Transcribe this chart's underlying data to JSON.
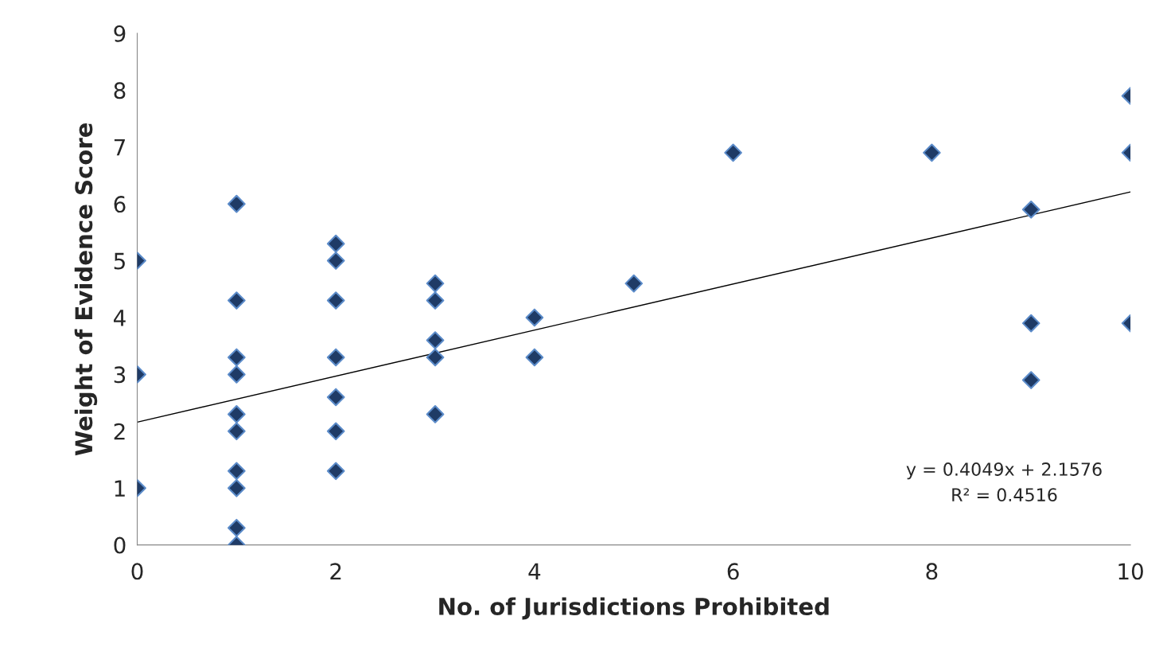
{
  "chart_data": {
    "type": "scatter",
    "xlabel": "No. of Jurisdictions Prohibited",
    "ylabel": "Weight of Evidence Score",
    "xlim": [
      0,
      10
    ],
    "xticks": [
      0,
      2,
      4,
      6,
      8,
      10
    ],
    "ylim": [
      0,
      9
    ],
    "yticks": [
      0,
      1,
      2,
      3,
      4,
      5,
      6,
      7,
      8,
      9
    ],
    "grid": false,
    "legend": false,
    "marker": "diamond",
    "series": [
      {
        "color": "#1f3b66",
        "x": [
          0,
          0,
          0,
          1,
          1,
          1,
          1,
          1,
          1,
          1,
          1,
          1,
          1,
          2,
          2,
          2,
          2,
          2,
          2,
          2,
          3,
          3,
          3,
          3,
          3,
          4,
          4,
          5,
          6,
          8,
          9,
          9,
          9,
          10,
          10,
          10
        ],
        "values": [
          5,
          3,
          1,
          6,
          4.3,
          3.3,
          3,
          2.3,
          2,
          1.3,
          1,
          0.3,
          0,
          5.3,
          5,
          4.3,
          3.3,
          2.6,
          2,
          1.3,
          4.6,
          4.3,
          3.6,
          3.3,
          2.3,
          4,
          3.3,
          4.6,
          6.9,
          6.9,
          5.9,
          3.9,
          2.9,
          7.9,
          6.9,
          3.9
        ]
      },
      {
        "type": "line",
        "color": "#000000",
        "marker": "none",
        "x": [
          0,
          10
        ],
        "values": [
          2.16,
          6.21
        ]
      }
    ],
    "annotations": [
      "y = 0.4049x + 2.1576",
      "R² = 0.4516"
    ]
  }
}
